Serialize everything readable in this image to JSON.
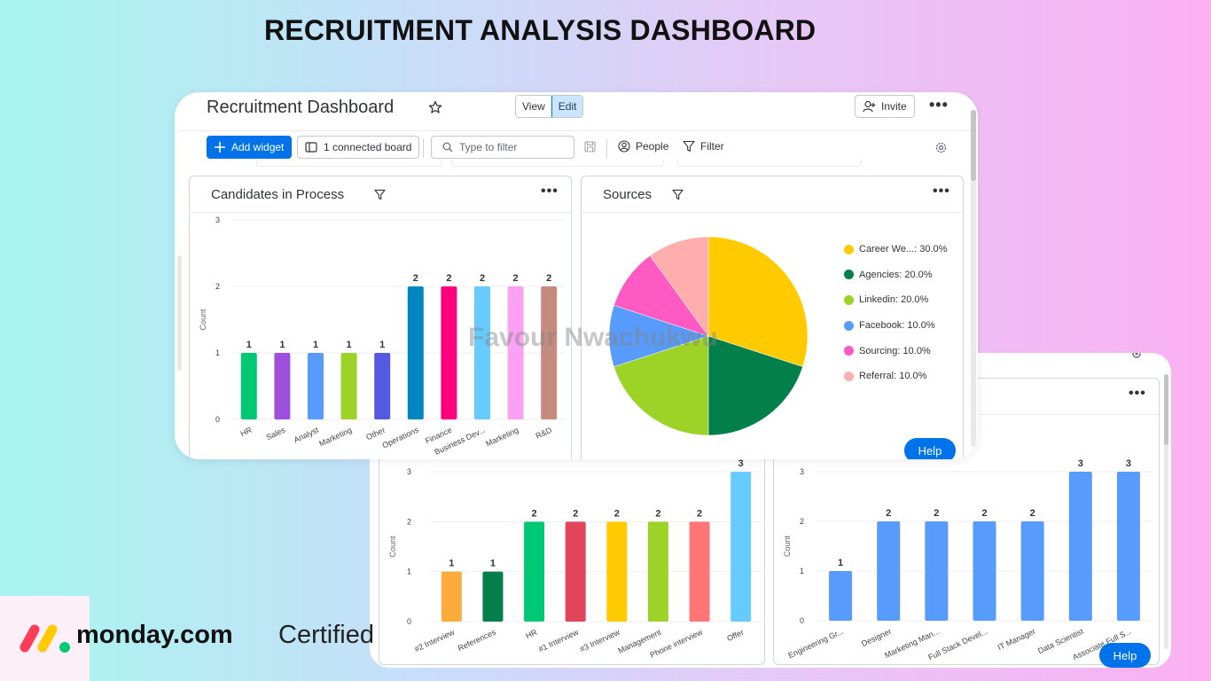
{
  "page_title": "RECRUITMENT ANALYSIS DASHBOARD",
  "dashboard": {
    "title": "Recruitment Dashboard",
    "view_label": "View",
    "edit_label": "Edit",
    "invite_label": "Invite",
    "add_widget_label": "Add widget",
    "connected_board_label": "1 connected board",
    "filter_placeholder": "Type to filter",
    "people_label": "People",
    "filter_label": "Filter"
  },
  "help_label": "Help",
  "watermark": "Favour Nwachukwu",
  "branding": {
    "name": "monday.com",
    "suffix": "Certified"
  },
  "colors": {
    "primary": "#0073ea",
    "border": "#d0d4e4",
    "text": "#323338"
  },
  "icons": [
    "star-icon",
    "plus-icon",
    "board-icon",
    "search-icon",
    "save-icon",
    "person-icon",
    "filter-icon",
    "gear-icon",
    "person-add-icon"
  ],
  "widgets": {
    "candidates": {
      "title": "Candidates in Process"
    },
    "sources": {
      "title": "Sources"
    }
  },
  "chart_data": [
    {
      "id": "candidates",
      "type": "bar",
      "categories": [
        "HR",
        "Sales",
        "Analyst",
        "Marketing",
        "Other",
        "Operations",
        "Finance",
        "Business Dev...",
        "Marketing",
        "R&D"
      ],
      "values": [
        1,
        1,
        1,
        1,
        1,
        2,
        2,
        2,
        2,
        2
      ],
      "colors": [
        "#00c875",
        "#9d50dd",
        "#579bfc",
        "#9cd326",
        "#5559df",
        "#0086c0",
        "#ff007f",
        "#66ccff",
        "#faa1f1",
        "#c48b7e"
      ],
      "ylabel": "Count",
      "ylim": [
        0,
        3
      ],
      "yticks": [
        0,
        1,
        2,
        3
      ]
    },
    {
      "id": "sources",
      "type": "pie",
      "labels": [
        "Career We...",
        "Agencies",
        "Linkedin",
        "Facebook",
        "Sourcing",
        "Referral"
      ],
      "values": [
        30.0,
        20.0,
        20.0,
        10.0,
        10.0,
        10.0
      ],
      "colors": [
        "#ffcb00",
        "#037f4c",
        "#9cd326",
        "#579bfc",
        "#ff5ac4",
        "#ffadad"
      ],
      "legend_position": "right"
    },
    {
      "id": "stages",
      "type": "bar",
      "categories": [
        "#2 Interview",
        "References",
        "HR",
        "#1 Interview",
        "#3 Interview",
        "Management",
        "Phone interview",
        "Offer"
      ],
      "values": [
        1,
        1,
        2,
        2,
        2,
        2,
        2,
        3
      ],
      "colors": [
        "#fdab3d",
        "#037f4c",
        "#00c875",
        "#e2445c",
        "#ffcb00",
        "#9cd326",
        "#ff7575",
        "#66ccff"
      ],
      "ylabel": "Count",
      "ylim": [
        0,
        3
      ],
      "yticks": [
        0,
        1,
        2,
        3
      ]
    },
    {
      "id": "positions",
      "type": "bar",
      "categories": [
        "Engineering Gr...",
        "Designer",
        "Marketing Man...",
        "Full Stack Devel...",
        "IT Manager",
        "Data Scientist",
        "Associate Full S..."
      ],
      "values": [
        1,
        2,
        2,
        2,
        2,
        3,
        3
      ],
      "colors": [
        "#579bfc",
        "#579bfc",
        "#579bfc",
        "#579bfc",
        "#579bfc",
        "#579bfc",
        "#579bfc"
      ],
      "ylabel": "Count",
      "ylim": [
        0,
        3
      ],
      "yticks": [
        0,
        1,
        2,
        3
      ]
    }
  ]
}
